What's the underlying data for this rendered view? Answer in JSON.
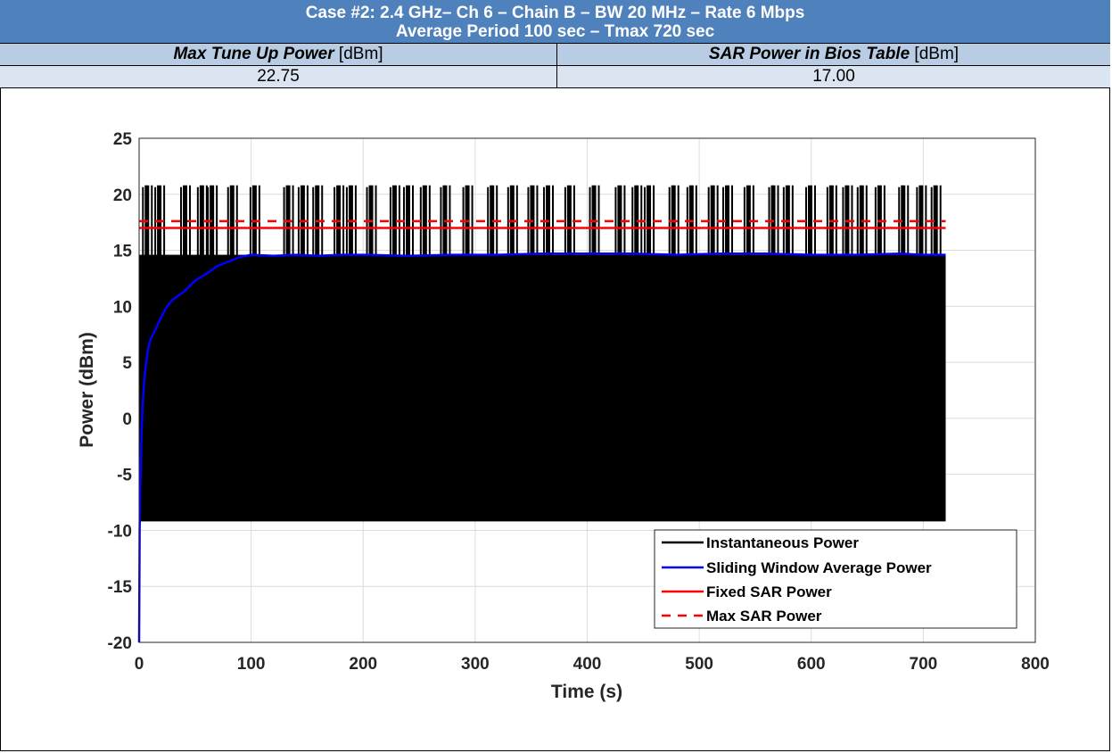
{
  "header": {
    "line1": "Case #2: 2.4 GHz– Ch 6 – Chain B – BW 20 MHz – Rate 6 Mbps",
    "line2": "Average Period 100 sec – Tmax 720 sec"
  },
  "table": {
    "col1_label_em": "Max Tune Up Power",
    "col1_unit": " [dBm]",
    "col2_label_em": "SAR Power in Bios Table",
    "col2_unit": " [dBm]",
    "col1_value": "22.75",
    "col2_value": "17.00"
  },
  "chart_data": {
    "type": "line",
    "xlabel": "Time (s)",
    "ylabel": "Power (dBm)",
    "xlim": [
      0,
      800
    ],
    "ylim": [
      -20,
      25
    ],
    "xticks": [
      0,
      100,
      200,
      300,
      400,
      500,
      600,
      700,
      800
    ],
    "yticks": [
      -20,
      -15,
      -10,
      -5,
      0,
      5,
      10,
      15,
      20,
      25
    ],
    "grid": true,
    "legend_position": "bottom-right",
    "instantaneous": {
      "low": -9.2,
      "high": 14.6,
      "peak": 20.8,
      "t_start": 0,
      "t_end": 720,
      "burst_times": [
        5,
        16,
        39,
        54,
        63,
        81,
        101,
        131,
        144,
        157,
        176,
        187,
        205,
        226,
        238,
        253,
        271,
        291,
        313,
        331,
        349,
        363,
        382,
        404,
        427,
        442,
        453,
        475,
        491,
        510,
        523,
        542,
        564,
        577,
        597,
        616,
        630,
        643,
        659,
        680,
        696,
        709
      ]
    },
    "series": [
      {
        "name": "Instantaneous Power",
        "color": "#000000",
        "style": "solid"
      },
      {
        "name": "Sliding Window Average Power",
        "color": "#0000ff",
        "style": "solid",
        "x": [
          0,
          0.5,
          1,
          2,
          3,
          5,
          8,
          10,
          15,
          20,
          25,
          30,
          40,
          50,
          60,
          70,
          80,
          90,
          100,
          120,
          140,
          160,
          180,
          200,
          240,
          280,
          320,
          360,
          400,
          440,
          480,
          520,
          560,
          600,
          640,
          680,
          700,
          720
        ],
        "y": [
          -20,
          -10,
          -6,
          -2,
          1,
          4,
          6.2,
          7,
          8,
          9.1,
          10,
          10.6,
          11.3,
          12.3,
          12.9,
          13.6,
          14.0,
          14.4,
          14.6,
          14.5,
          14.6,
          14.5,
          14.6,
          14.6,
          14.5,
          14.6,
          14.6,
          14.7,
          14.7,
          14.7,
          14.6,
          14.7,
          14.7,
          14.6,
          14.6,
          14.7,
          14.6,
          14.6
        ]
      },
      {
        "name": "Fixed SAR Power",
        "color": "#ff0000",
        "style": "solid",
        "y": 17.0,
        "x_range": [
          0,
          720
        ]
      },
      {
        "name": "Max SAR Power",
        "color": "#ff0000",
        "style": "dashed",
        "y": 17.6,
        "x_range": [
          0,
          720
        ]
      }
    ]
  }
}
